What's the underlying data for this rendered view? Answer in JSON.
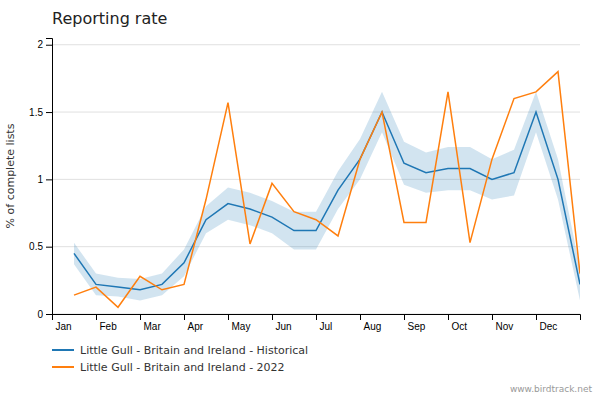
{
  "chart_data": {
    "type": "line",
    "title": "Reporting rate",
    "y_label": "% of complete lists",
    "x": [
      0.5,
      1.0,
      1.5,
      2.0,
      2.5,
      3.0,
      3.5,
      4.0,
      4.5,
      5.0,
      5.5,
      6.0,
      6.5,
      7.0,
      7.5,
      8.0,
      8.5,
      9.0,
      9.5,
      10.0,
      10.5,
      11.0,
      11.5,
      12.0
    ],
    "xlim": [
      0,
      12
    ],
    "xticks": [
      {
        "value": 0,
        "label": "Jan"
      },
      {
        "value": 1,
        "label": "Feb"
      },
      {
        "value": 2,
        "label": "Mar"
      },
      {
        "value": 3,
        "label": "Apr"
      },
      {
        "value": 4,
        "label": "May"
      },
      {
        "value": 5,
        "label": "Jun"
      },
      {
        "value": 6,
        "label": "Jul"
      },
      {
        "value": 7,
        "label": "Aug"
      },
      {
        "value": 8,
        "label": "Sep"
      },
      {
        "value": 9,
        "label": "Oct"
      },
      {
        "value": 10,
        "label": "Nov"
      },
      {
        "value": 11,
        "label": "Dec"
      }
    ],
    "ylim": [
      0,
      2.05
    ],
    "yticks": [
      0,
      0.5,
      1,
      1.5,
      2
    ],
    "grid": true,
    "legend": "bottom",
    "series": [
      {
        "name": "Little Gull - Britain and Ireland - Historical",
        "values": [
          0.45,
          0.22,
          0.2,
          0.18,
          0.22,
          0.38,
          0.7,
          0.82,
          0.78,
          0.72,
          0.62,
          0.62,
          0.92,
          1.15,
          1.5,
          1.12,
          1.05,
          1.08,
          1.08,
          1.0,
          1.05,
          1.5,
          1.0,
          0.22
        ],
        "upper": [
          0.53,
          0.3,
          0.27,
          0.26,
          0.3,
          0.48,
          0.8,
          0.94,
          0.9,
          0.84,
          0.76,
          0.76,
          1.06,
          1.3,
          1.65,
          1.28,
          1.2,
          1.24,
          1.24,
          1.15,
          1.22,
          1.65,
          1.15,
          0.34
        ],
        "lower": [
          0.37,
          0.14,
          0.13,
          0.1,
          0.14,
          0.28,
          0.6,
          0.7,
          0.66,
          0.6,
          0.48,
          0.48,
          0.78,
          1.0,
          1.35,
          0.96,
          0.9,
          0.92,
          0.92,
          0.85,
          0.88,
          1.35,
          0.85,
          0.1
        ]
      },
      {
        "name": "Little Gull - Britain and Ireland - 2022",
        "values": [
          0.14,
          0.2,
          0.05,
          0.28,
          0.18,
          0.22,
          0.85,
          1.57,
          0.52,
          0.97,
          0.76,
          0.7,
          0.58,
          1.15,
          1.5,
          0.68,
          0.68,
          1.65,
          0.53,
          1.15,
          1.6,
          1.65,
          1.8,
          0.3
        ]
      }
    ],
    "annotations": [
      "www.birdtrack.net"
    ]
  }
}
